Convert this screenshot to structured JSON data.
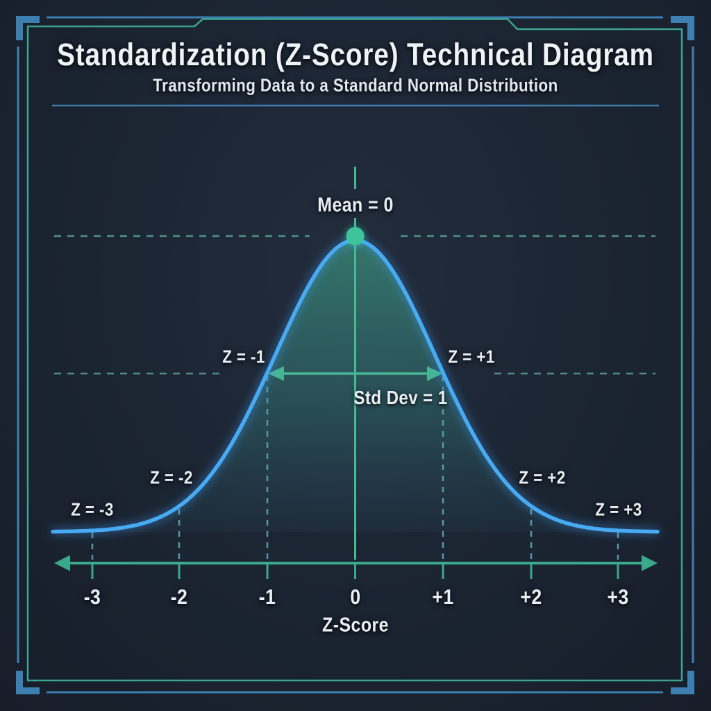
{
  "header": {
    "title": "Standardization (Z-Score) Technical Diagram",
    "subtitle": "Transforming Data to a Standard Normal Distribution"
  },
  "diagram": {
    "mean_label": "Mean = 0",
    "std_dev_label": "Std Dev = 1",
    "z_labels": {
      "minus1": "Z = -1",
      "plus1": "Z = +1",
      "minus2": "Z = -2",
      "plus2": "Z = +2",
      "minus3": "Z = -3",
      "plus3": "Z = +3"
    },
    "axis": {
      "ticks": [
        "-3",
        "-2",
        "-1",
        "0",
        "+1",
        "+2",
        "+3"
      ],
      "label": "Z-Score"
    }
  },
  "chart_data": {
    "type": "area",
    "title": "Standardization (Z-Score) Technical Diagram",
    "subtitle": "Transforming Data to a Standard Normal Distribution",
    "xlabel": "Z-Score",
    "distribution": "standard_normal",
    "mean": 0,
    "std_dev": 1,
    "x_ticks": [
      -3,
      -2,
      -1,
      0,
      1,
      2,
      3
    ],
    "xlim": [
      -3.4,
      3.4
    ],
    "curve_relative_height": [
      {
        "z": -3,
        "h": 0.011
      },
      {
        "z": -2,
        "h": 0.135
      },
      {
        "z": -1,
        "h": 0.607
      },
      {
        "z": 0,
        "h": 1.0
      },
      {
        "z": 1,
        "h": 0.607
      },
      {
        "z": 2,
        "h": 0.135
      },
      {
        "z": 3,
        "h": 0.011
      }
    ],
    "annotations": [
      "Mean = 0",
      "Std Dev = 1",
      "Z = -3",
      "Z = -2",
      "Z = -1",
      "Z = +1",
      "Z = +2",
      "Z = +3"
    ],
    "legend": "none",
    "grid": "dashed guides at mean level and at one std dev level"
  },
  "colors": {
    "background": "#1b2431",
    "curve_blue": "#47aaf3",
    "curve_glow": "#3da0ff",
    "fill_teal": "#46b996",
    "axis_teal": "#3aa98c",
    "center_line_teal": "#44bb93",
    "mean_dot": "#3cc49a",
    "dashed_horizontal": "#4f9187",
    "dashed_vertical": "#5596a9",
    "frame_blue": "#3e7fb1",
    "frame_teal": "#3ba390",
    "text": "#e9eef4"
  }
}
